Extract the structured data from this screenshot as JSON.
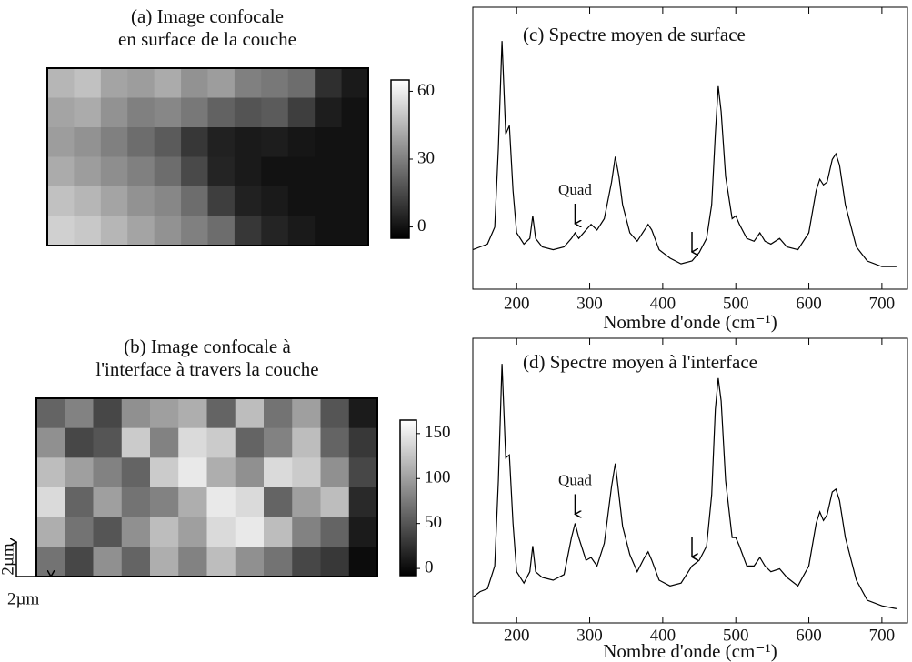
{
  "chart_data": [
    {
      "type": "heatmap",
      "title": [
        "(a) Image confocale",
        "en surface de la couche"
      ],
      "values": [
        [
          45,
          48,
          40,
          38,
          42,
          35,
          38,
          30,
          28,
          25,
          8,
          2
        ],
        [
          40,
          42,
          35,
          30,
          32,
          28,
          22,
          18,
          20,
          12,
          3,
          0
        ],
        [
          38,
          35,
          30,
          25,
          20,
          10,
          4,
          2,
          3,
          1,
          0,
          0
        ],
        [
          42,
          38,
          34,
          30,
          25,
          15,
          5,
          2,
          0,
          0,
          0,
          0
        ],
        [
          48,
          45,
          40,
          35,
          32,
          25,
          12,
          4,
          2,
          0,
          0,
          0
        ],
        [
          52,
          50,
          45,
          40,
          35,
          30,
          25,
          10,
          5,
          2,
          0,
          0
        ]
      ],
      "clim": [
        -5,
        65
      ],
      "colorbar_ticks": [
        0,
        30,
        60
      ],
      "colormap": [
        "#000000",
        "#ffffff"
      ]
    },
    {
      "type": "heatmap",
      "title": [
        "(b) Image confocale à",
        "l'interface à travers la couche"
      ],
      "values": [
        [
          60,
          80,
          40,
          90,
          100,
          110,
          60,
          120,
          70,
          100,
          50,
          10
        ],
        [
          90,
          40,
          50,
          130,
          80,
          140,
          130,
          60,
          80,
          120,
          60,
          30
        ],
        [
          120,
          100,
          80,
          60,
          130,
          150,
          110,
          90,
          140,
          130,
          90,
          40
        ],
        [
          140,
          60,
          100,
          70,
          80,
          110,
          150,
          140,
          60,
          100,
          120,
          20
        ],
        [
          110,
          70,
          50,
          90,
          120,
          100,
          140,
          150,
          120,
          80,
          60,
          10
        ],
        [
          70,
          40,
          90,
          60,
          110,
          80,
          120,
          90,
          70,
          40,
          30,
          0
        ]
      ],
      "clim": [
        -8,
        165
      ],
      "colorbar_ticks": [
        0,
        50,
        100,
        150
      ],
      "colormap": [
        "#000000",
        "#ffffff"
      ],
      "scale_bar_labels": [
        "2µm",
        "2µm"
      ]
    },
    {
      "type": "line",
      "title": "(c) Spectre moyen de surface",
      "xlabel": "Nombre d'onde (cm⁻¹)",
      "color": "#000000",
      "x": [
        140,
        150,
        160,
        170,
        175,
        180,
        185,
        190,
        195,
        200,
        210,
        218,
        222,
        226,
        235,
        250,
        265,
        275,
        280,
        285,
        295,
        302,
        310,
        320,
        330,
        335,
        340,
        345,
        355,
        365,
        375,
        380,
        385,
        395,
        410,
        425,
        440,
        450,
        460,
        467,
        472,
        476,
        480,
        486,
        495,
        500,
        505,
        515,
        525,
        533,
        540,
        548,
        560,
        570,
        585,
        600,
        610,
        615,
        620,
        625,
        632,
        637,
        642,
        650,
        665,
        680,
        700,
        720
      ],
      "values": [
        14,
        15,
        16,
        22,
        50,
        88,
        55,
        58,
        35,
        20,
        16,
        18,
        26,
        18,
        15,
        14,
        15,
        18,
        20,
        18,
        21,
        23,
        21,
        25,
        38,
        47,
        40,
        30,
        20,
        17,
        21,
        23,
        21,
        14,
        11,
        9,
        10,
        13,
        18,
        30,
        55,
        72,
        63,
        40,
        25,
        26,
        23,
        18,
        17,
        20,
        17,
        16,
        18,
        15,
        14,
        20,
        35,
        39,
        37,
        38,
        46,
        48,
        44,
        30,
        15,
        10,
        8,
        8
      ],
      "xlim": [
        140,
        735
      ],
      "ylim": [
        0,
        100
      ],
      "xticks": [
        200,
        300,
        400,
        500,
        600,
        700
      ],
      "annotations": [
        {
          "text": "Quad",
          "x": 280
        },
        {
          "x": 440
        }
      ]
    },
    {
      "type": "line",
      "title": "(d) Spectre moyen à l'interface",
      "xlabel": "Nombre d'onde (cm⁻¹)",
      "color": "#000000",
      "x": [
        140,
        150,
        160,
        170,
        175,
        180,
        185,
        190,
        195,
        200,
        210,
        218,
        222,
        226,
        235,
        250,
        265,
        275,
        280,
        285,
        295,
        302,
        310,
        320,
        330,
        335,
        340,
        345,
        355,
        365,
        375,
        380,
        385,
        395,
        410,
        425,
        440,
        450,
        460,
        467,
        472,
        476,
        480,
        486,
        495,
        500,
        505,
        515,
        525,
        533,
        540,
        548,
        560,
        570,
        585,
        600,
        610,
        615,
        620,
        625,
        632,
        637,
        642,
        650,
        665,
        680,
        700,
        720
      ],
      "values": [
        9,
        11,
        12,
        20,
        50,
        91,
        58,
        59,
        35,
        18,
        14,
        18,
        27,
        18,
        16,
        15,
        17,
        30,
        35,
        30,
        22,
        23,
        20,
        28,
        48,
        56,
        45,
        34,
        24,
        18,
        23,
        25,
        22,
        15,
        13,
        14,
        20,
        22,
        27,
        45,
        75,
        86,
        78,
        50,
        30,
        30,
        27,
        20,
        20,
        23,
        20,
        18,
        19,
        16,
        13,
        20,
        35,
        39,
        36,
        38,
        46,
        47,
        43,
        30,
        15,
        8,
        6,
        5
      ],
      "xlim": [
        140,
        735
      ],
      "ylim": [
        0,
        100
      ],
      "xticks": [
        200,
        300,
        400,
        500,
        600,
        700
      ],
      "annotations": [
        {
          "text": "Quad",
          "x": 280
        },
        {
          "x": 440
        }
      ]
    }
  ]
}
